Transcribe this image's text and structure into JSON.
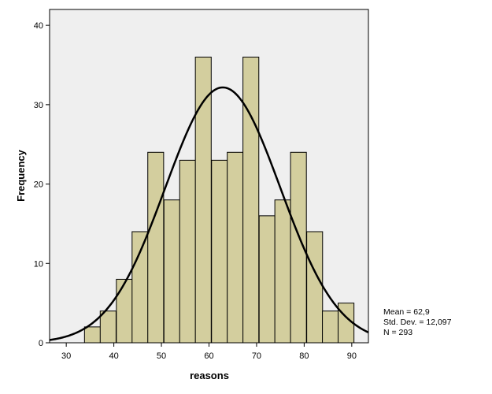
{
  "chart_data": {
    "type": "bar",
    "xlabel": "reasons",
    "ylabel": "Frequency",
    "xlim": [
      26.5,
      93.5
    ],
    "ylim": [
      0,
      42
    ],
    "xticks": [
      30,
      40,
      50,
      60,
      70,
      80,
      90
    ],
    "yticks": [
      0,
      10,
      20,
      30,
      40
    ],
    "bin_width": 3.33,
    "bins": [
      {
        "center": 35.5,
        "count": 2
      },
      {
        "center": 38.8,
        "count": 4
      },
      {
        "center": 42.2,
        "count": 8
      },
      {
        "center": 45.5,
        "count": 14
      },
      {
        "center": 48.8,
        "count": 24
      },
      {
        "center": 52.2,
        "count": 18
      },
      {
        "center": 55.5,
        "count": 23
      },
      {
        "center": 58.8,
        "count": 36
      },
      {
        "center": 62.2,
        "count": 23
      },
      {
        "center": 65.5,
        "count": 24
      },
      {
        "center": 68.8,
        "count": 36
      },
      {
        "center": 72.2,
        "count": 16
      },
      {
        "center": 75.5,
        "count": 18
      },
      {
        "center": 78.8,
        "count": 24
      },
      {
        "center": 82.2,
        "count": 14
      },
      {
        "center": 85.5,
        "count": 4
      },
      {
        "center": 88.8,
        "count": 5
      }
    ],
    "normal_curve": {
      "mean": 62.9,
      "std_dev": 12.097,
      "n": 293
    },
    "grid": false,
    "colors": {
      "plot_background": "#efefef",
      "bar_fill": "#d3ce9e",
      "bar_stroke": "#000000",
      "curve": "#000000"
    }
  },
  "stats": {
    "mean_label": "Mean = 62,9",
    "std_label": "Std. Dev. = 12,097",
    "n_label": "N = 293"
  }
}
